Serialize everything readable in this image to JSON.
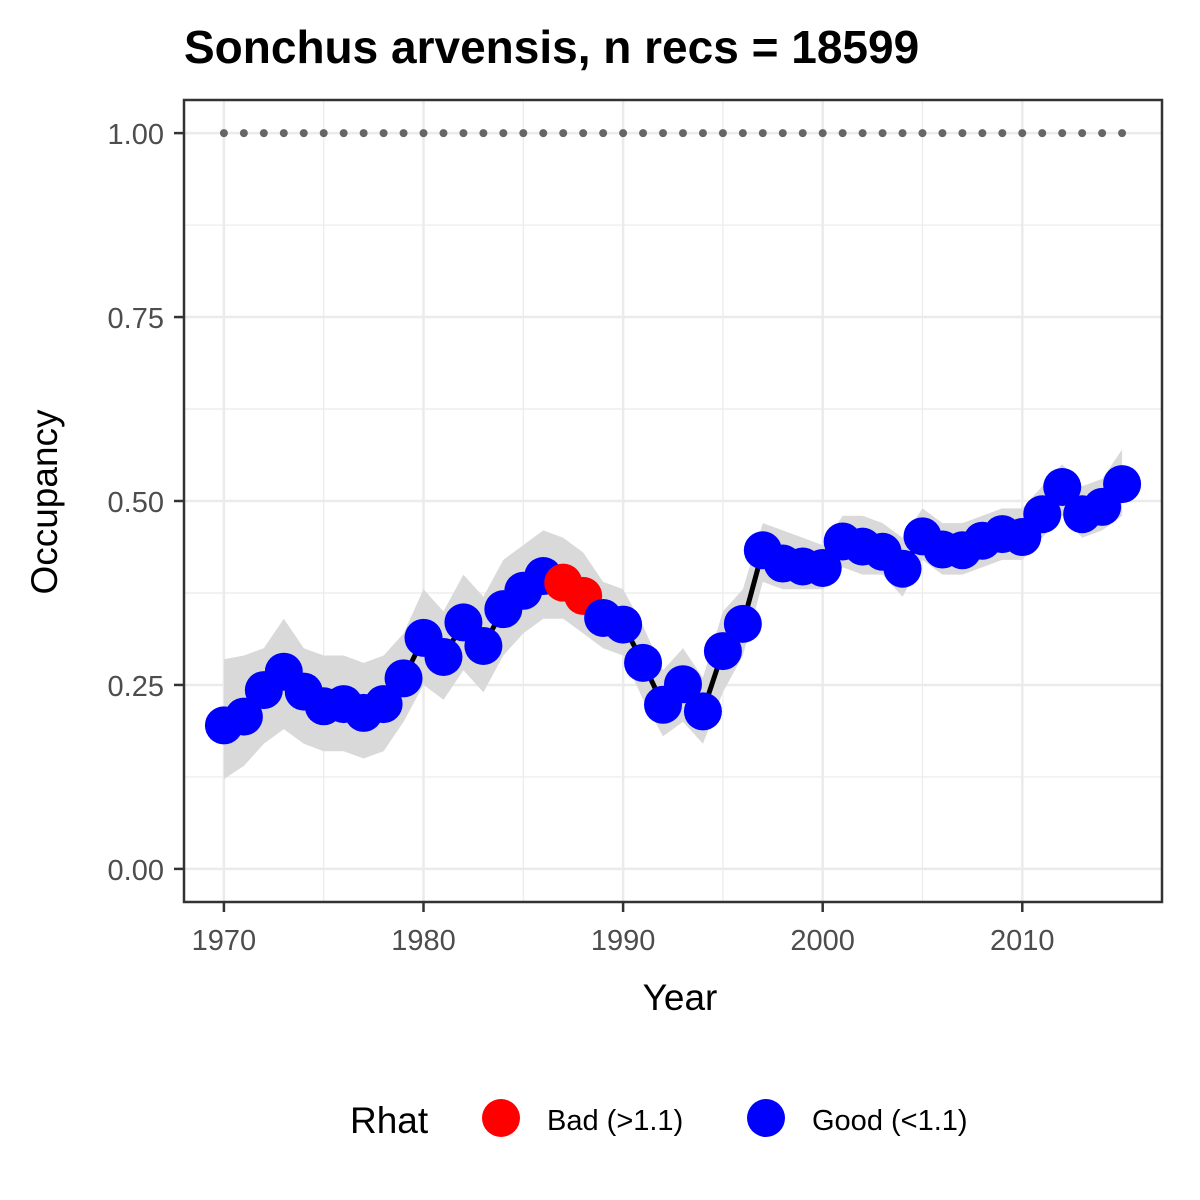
{
  "chart_data": {
    "type": "line",
    "title": "Sonchus arvensis, n recs = 18599",
    "xlabel": "Year",
    "ylabel": "Occupancy",
    "xlim": [
      1968,
      2017
    ],
    "ylim": [
      -0.045,
      1.045
    ],
    "x_ticks": [
      1970,
      1980,
      1990,
      2000,
      2010
    ],
    "x_tick_labels": [
      "1970",
      "1980",
      "1990",
      "2000",
      "2010"
    ],
    "y_ticks": [
      0,
      0.25,
      0.5,
      0.75,
      1.0
    ],
    "y_tick_labels": [
      "0.00",
      "0.25",
      "0.50",
      "0.75",
      "1.00"
    ],
    "grid": true,
    "legend_position": "bottom",
    "legend": {
      "title": "Rhat",
      "entries": [
        {
          "label": "Bad (>1.1)",
          "color": "#ff0000"
        },
        {
          "label": "Good (<1.1)",
          "color": "#0000ff"
        }
      ]
    },
    "colors": {
      "bad": "#ff0000",
      "good": "#0000ff",
      "line": "#000000",
      "ribbon": "#d9d9d9",
      "reference": "#666666"
    },
    "reference_line": {
      "y": 1.0,
      "style": "dotted"
    },
    "series": [
      {
        "x": [
          1970,
          1971,
          1972,
          1973,
          1974,
          1975,
          1976,
          1977,
          1978,
          1979,
          1980,
          1981,
          1982,
          1983,
          1984,
          1985,
          1986,
          1987,
          1988,
          1989,
          1990,
          1991,
          1992,
          1993,
          1994,
          1995,
          1996,
          1997,
          1998,
          1999,
          2000,
          2001,
          2002,
          2003,
          2004,
          2005,
          2006,
          2007,
          2008,
          2009,
          2010,
          2011,
          2012,
          2013,
          2014,
          2015
        ],
        "y": [
          0.195,
          0.207,
          0.243,
          0.268,
          0.241,
          0.221,
          0.224,
          0.212,
          0.224,
          0.259,
          0.314,
          0.288,
          0.335,
          0.303,
          0.353,
          0.378,
          0.398,
          0.389,
          0.371,
          0.341,
          0.332,
          0.28,
          0.223,
          0.251,
          0.214,
          0.296,
          0.333,
          0.433,
          0.415,
          0.411,
          0.409,
          0.445,
          0.438,
          0.431,
          0.408,
          0.452,
          0.434,
          0.433,
          0.446,
          0.455,
          0.451,
          0.482,
          0.519,
          0.482,
          0.492,
          0.523
        ],
        "lower": [
          0.122,
          0.14,
          0.17,
          0.19,
          0.17,
          0.16,
          0.16,
          0.15,
          0.16,
          0.2,
          0.25,
          0.23,
          0.27,
          0.24,
          0.29,
          0.32,
          0.34,
          0.34,
          0.32,
          0.3,
          0.29,
          0.23,
          0.18,
          0.2,
          0.17,
          0.24,
          0.29,
          0.39,
          0.38,
          0.38,
          0.38,
          0.41,
          0.4,
          0.4,
          0.37,
          0.42,
          0.4,
          0.4,
          0.41,
          0.42,
          0.42,
          0.45,
          0.48,
          0.45,
          0.46,
          0.48
        ],
        "upper": [
          0.285,
          0.29,
          0.3,
          0.34,
          0.3,
          0.29,
          0.29,
          0.28,
          0.29,
          0.32,
          0.38,
          0.35,
          0.4,
          0.37,
          0.42,
          0.44,
          0.46,
          0.45,
          0.43,
          0.39,
          0.38,
          0.33,
          0.27,
          0.3,
          0.26,
          0.35,
          0.38,
          0.47,
          0.46,
          0.45,
          0.44,
          0.48,
          0.48,
          0.47,
          0.45,
          0.49,
          0.47,
          0.47,
          0.48,
          0.49,
          0.49,
          0.52,
          0.55,
          0.52,
          0.53,
          0.57
        ],
        "rhat_status": [
          "good",
          "good",
          "good",
          "good",
          "good",
          "good",
          "good",
          "good",
          "good",
          "good",
          "good",
          "good",
          "good",
          "good",
          "good",
          "good",
          "good",
          "bad",
          "bad",
          "good",
          "good",
          "good",
          "good",
          "good",
          "good",
          "good",
          "good",
          "good",
          "good",
          "good",
          "good",
          "good",
          "good",
          "good",
          "good",
          "good",
          "good",
          "good",
          "good",
          "good",
          "good",
          "good",
          "good",
          "good",
          "good",
          "good"
        ]
      }
    ]
  }
}
